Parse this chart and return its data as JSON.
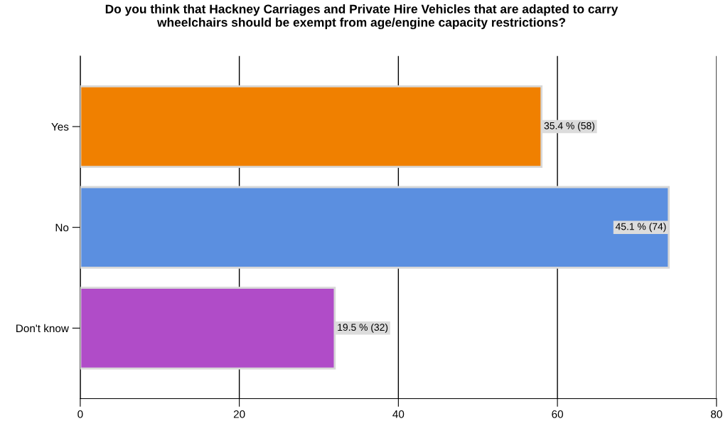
{
  "chart_data": {
    "type": "bar",
    "orientation": "horizontal",
    "title": "Do you think that Hackney Carriages and Private Hire Vehicles that are adapted to carry\nwheelchairs should be exempt from age/engine capacity restrictions?",
    "categories": [
      "Yes",
      "No",
      "Don't know"
    ],
    "values": [
      58,
      74,
      32
    ],
    "colors": [
      "#f08000",
      "#5b8fe0",
      "#b04cc8"
    ],
    "value_labels": [
      "35.4 % (58)",
      "45.1 % (74)",
      "19.5 % (32)"
    ],
    "xlim": [
      0,
      80
    ],
    "xticks": [
      0,
      20,
      40,
      60,
      80
    ],
    "grid": "x",
    "legend": false
  }
}
